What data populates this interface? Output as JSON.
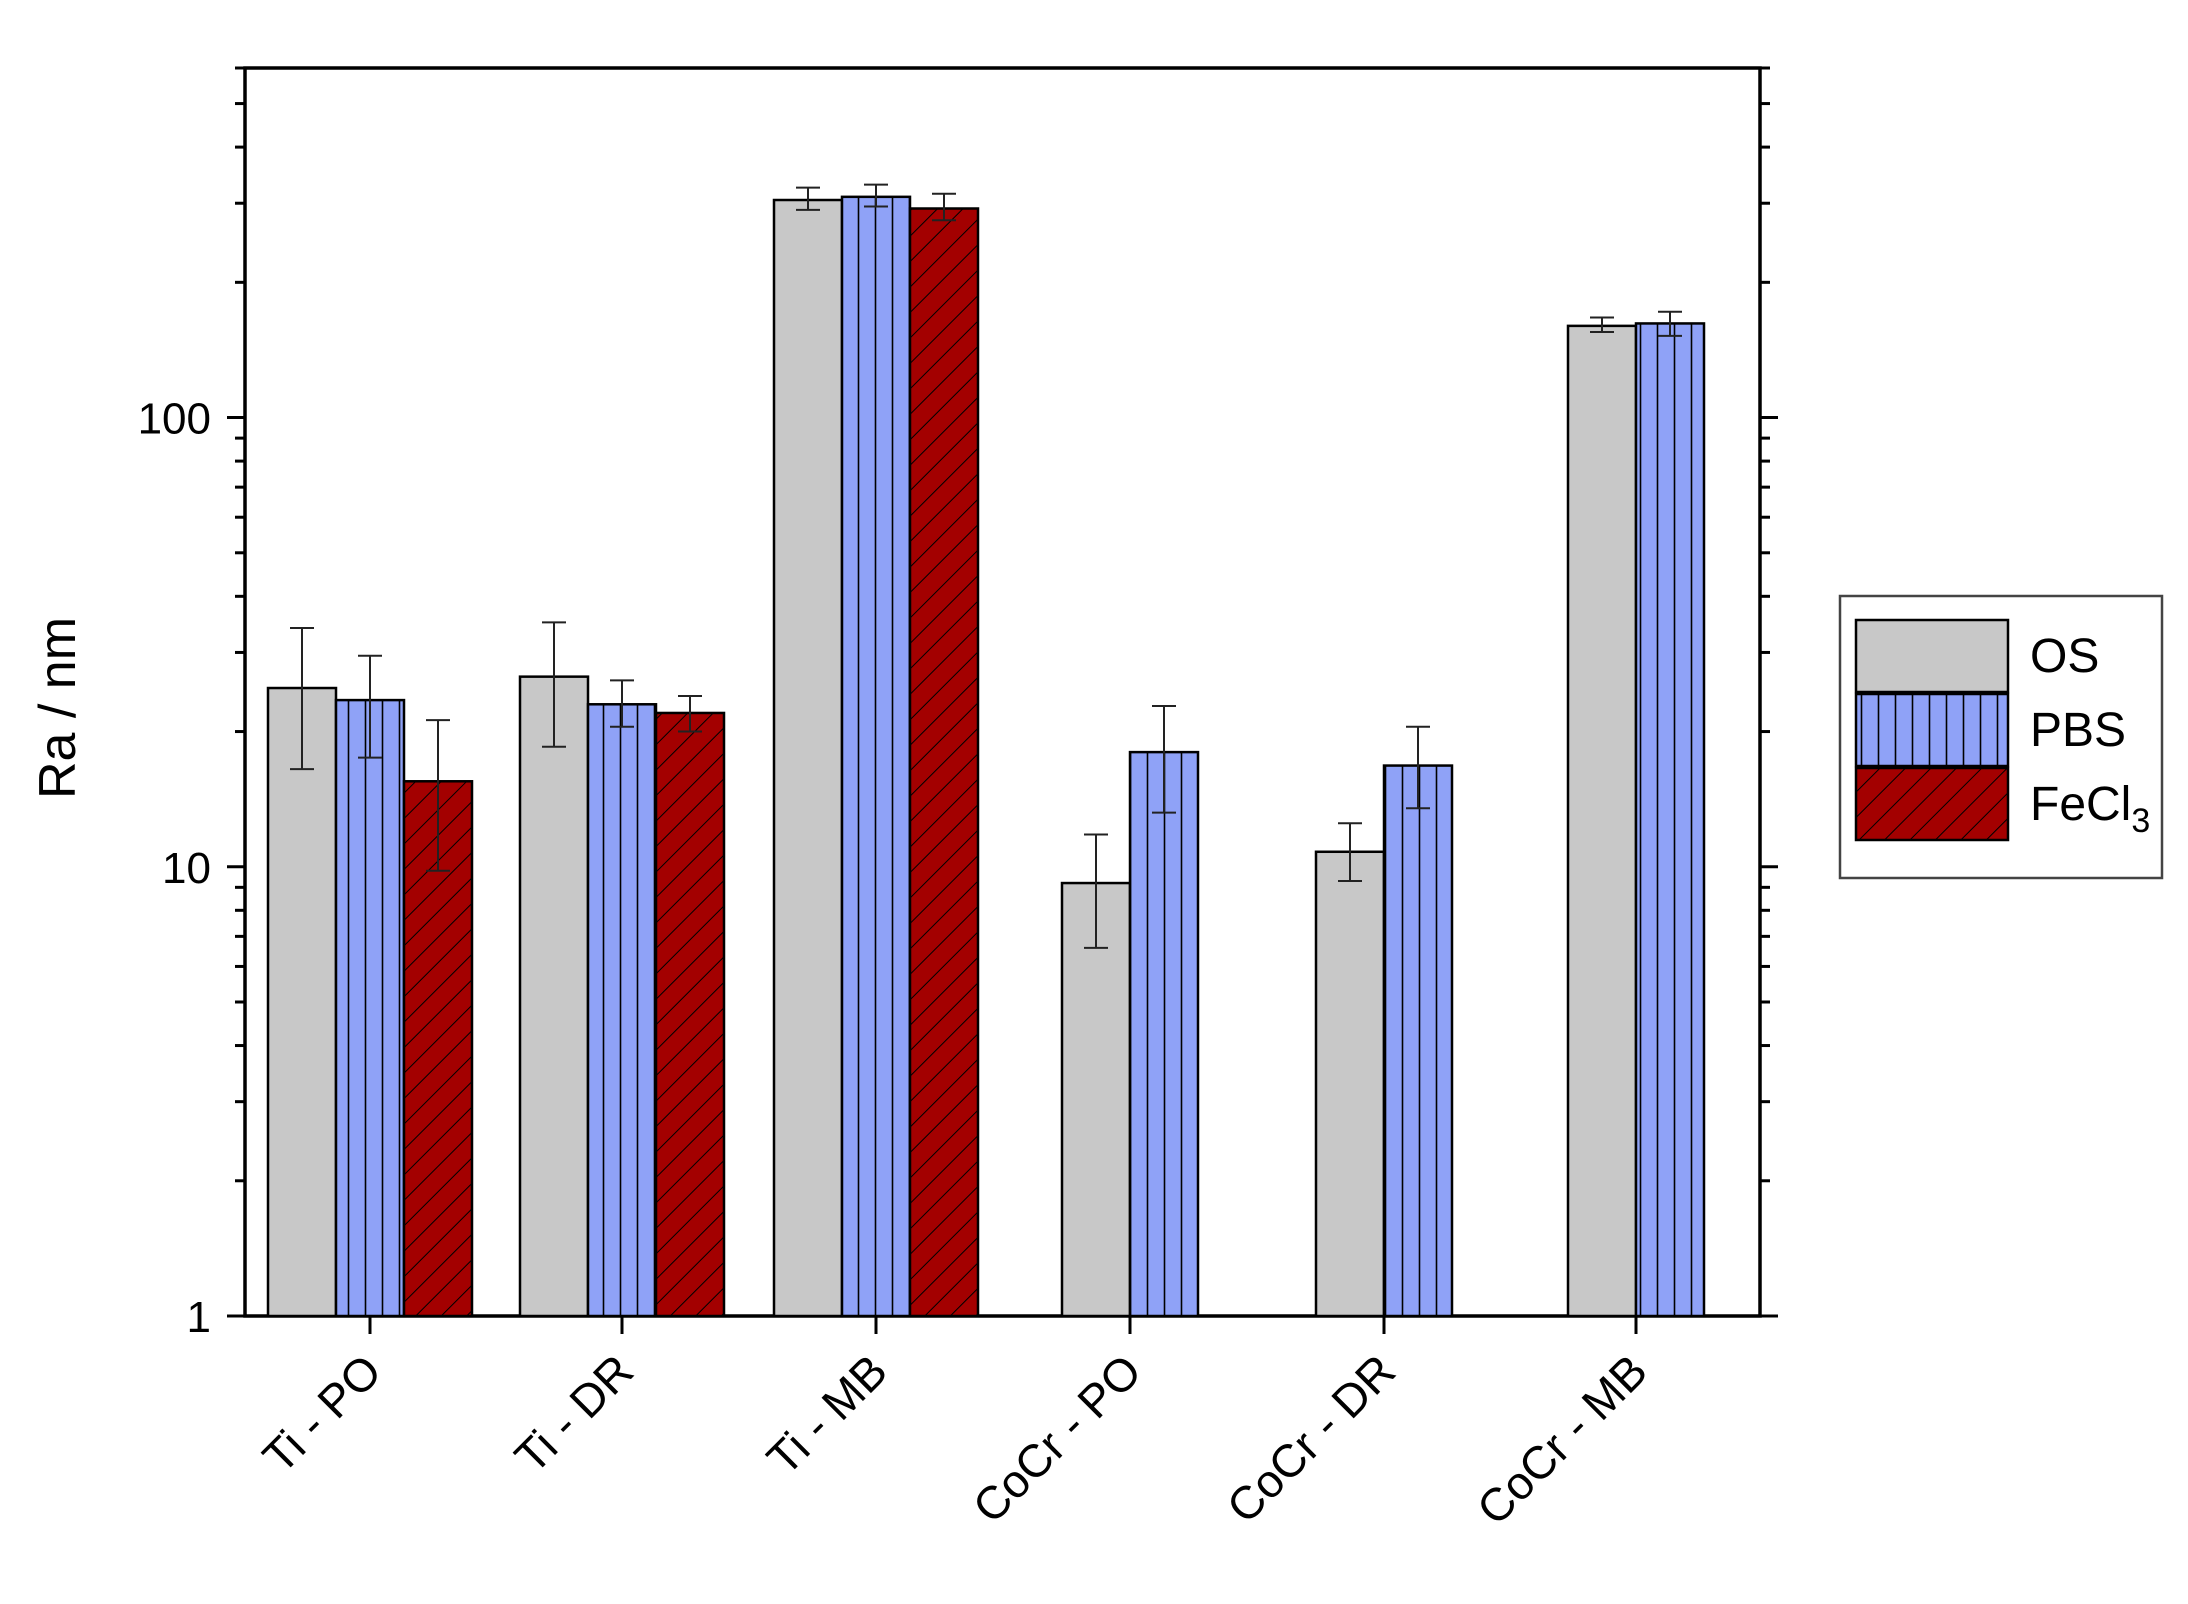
{
  "chart_data": {
    "type": "bar",
    "xlabel": "",
    "ylabel": "Ra / nm",
    "yscale": "log",
    "ylim": [
      1,
      600
    ],
    "yticks": [
      1,
      10,
      100
    ],
    "ytick_labels": [
      "1",
      "10",
      "100"
    ],
    "categories": [
      "Ti - PO",
      "Ti - DR",
      "Ti - MB",
      "CoCr - PO",
      "CoCr - DR",
      "CoCr - MB"
    ],
    "series": [
      {
        "name": "OS",
        "color": "#c8c8c8",
        "pattern": "none",
        "values": [
          25,
          26.5,
          305,
          9.2,
          10.8,
          160
        ],
        "err_low": [
          16.5,
          18.5,
          290,
          6.6,
          9.3,
          155
        ],
        "err_high": [
          34,
          35,
          325,
          11.8,
          12.5,
          167
        ]
      },
      {
        "name": "PBS",
        "color": "#8fa2f7",
        "pattern": "vertical-lines",
        "values": [
          23.5,
          23,
          310,
          18,
          16.8,
          162
        ],
        "err_low": [
          17.5,
          20.5,
          295,
          13.2,
          13.5,
          152
        ],
        "err_high": [
          29.5,
          26,
          330,
          22.8,
          20.5,
          172
        ]
      },
      {
        "name": "FeCl3",
        "color": "#a30000",
        "pattern": "diagonal-lines",
        "values": [
          15.5,
          22,
          292,
          null,
          null,
          null
        ],
        "err_low": [
          9.8,
          20,
          275,
          null,
          null,
          null
        ],
        "err_high": [
          21.2,
          24,
          315,
          null,
          null,
          null
        ]
      }
    ],
    "legend": {
      "position": "right",
      "entries": [
        {
          "label": "OS",
          "sub": ""
        },
        {
          "label": "PBS",
          "sub": ""
        },
        {
          "label": "FeCl",
          "sub": "3"
        }
      ]
    },
    "grid": false
  }
}
